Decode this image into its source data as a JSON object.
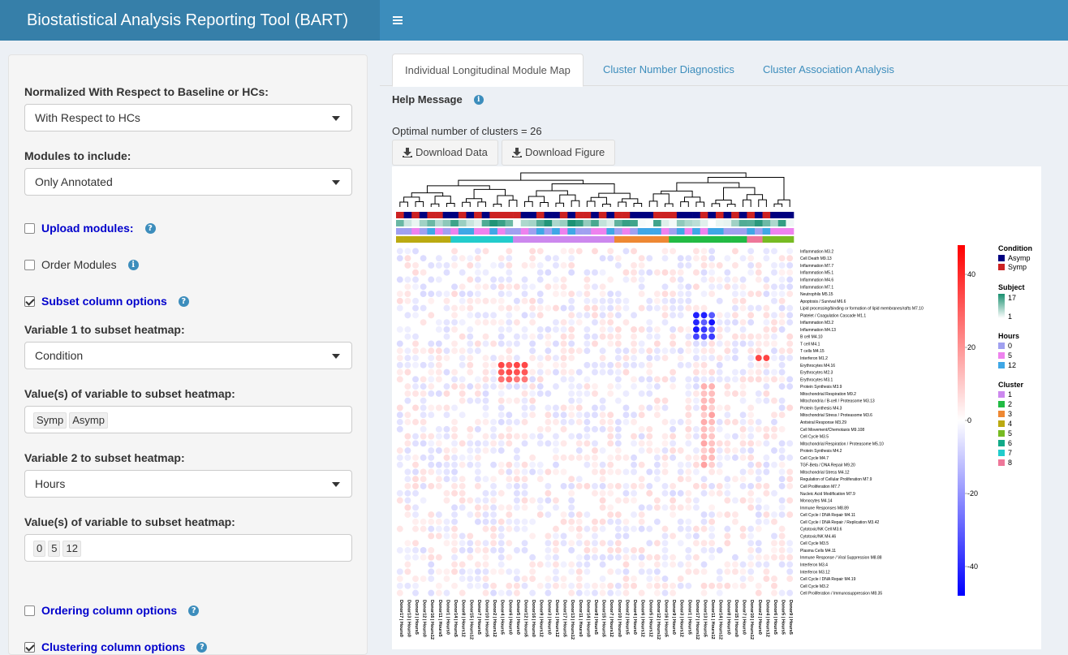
{
  "app": {
    "title": "Biostatistical Analysis Reporting Tool (BART)",
    "menu_icon": "hamburger-icon"
  },
  "sidebar": {
    "normalized_label": "Normalized With Respect to Baseline or HCs:",
    "normalized_value": "With Respect to HCs",
    "modules_label": "Modules to include:",
    "modules_value": "Only Annotated",
    "upload_modules_label": "Upload modules:",
    "upload_modules_checked": false,
    "order_modules_label": "Order Modules",
    "order_modules_checked": false,
    "subset_column_label": "Subset column options",
    "subset_column_checked": true,
    "var1_label": "Variable 1 to subset heatmap:",
    "var1_value": "Condition",
    "values1_label": "Value(s) of variable to subset heatmap:",
    "values1": [
      "Symp",
      "Asymp"
    ],
    "var2_label": "Variable 2 to subset heatmap:",
    "var2_value": "Hours",
    "values2_label": "Value(s) of variable to subset heatmap:",
    "values2": [
      "0",
      "5",
      "12"
    ],
    "ordering_column_label": "Ordering column options",
    "ordering_column_checked": false,
    "clustering_column_label": "Clustering column options",
    "clustering_column_checked": true
  },
  "main": {
    "tabs": [
      {
        "label": "Individual Longitudinal Module Map",
        "active": true
      },
      {
        "label": "Cluster Number Diagnostics",
        "active": false
      },
      {
        "label": "Cluster Association Analysis",
        "active": false
      }
    ],
    "help_message_label": "Help Message",
    "optimal_clusters_text": "Optimal number of clusters = 26",
    "download_data_label": "Download Data",
    "download_figure_label": "Download Figure"
  },
  "chart_data": {
    "type": "heatmap",
    "rows": [
      "Inflammation M3.2",
      "Cell Death M9.13",
      "Inflammation M7.7",
      "Inflammation M5.1",
      "Inflammation M4.6",
      "Inflammation M7.1",
      "Neutrophils M5.15",
      "Apoptosis / Survival M6.6",
      "Lipid processing/binding or formation of lipid membranes/rafts M7.10",
      "Platelet / Coagulation Cascade M1.1",
      "Inflammation M3.2",
      "Inflammation M4.13",
      "B cell M4.10",
      "T cell M4.1",
      "T cells M4.15",
      "Interferon M1.2",
      "Erythrocytes M4.16",
      "Erythrocytes M2.3",
      "Erythrocytes M3.1",
      "Protein Synthesis M3.9",
      "Mitochondrial Respiration M9.2",
      "Mitochondria / B-cell / Proteasome M3.13",
      "Protein Synthesis M4.3",
      "Mitochondrial Stress / Proteasome M3.6",
      "Antiviral Response M3.29",
      "Cell Movement/Chemotaxis M9.108",
      "Cell Cycle M3.5",
      "Mitochondrial Respiration / Proteasome M5.10",
      "Protein Synthesis M4.2",
      "Cell Cycle M4.7",
      "TGF-Beta / DNA Repair M9.20",
      "Mitochondrial Stress M4.12",
      "Regulation of Cellular Proliferation M7.9",
      "Cell Proliferation M7.7",
      "Nucleic Acid Modification M7.9",
      "Monocytes M4.14",
      "Immune Responses M8.89",
      "Cell Cycle / DNA Repair M4.11",
      "Cell Cycle / DNA Repair / Replication M3.42",
      "Cytotoxic/NK Cell M3.6",
      "Cytotoxic/NK M4.46",
      "Cell Cycle M3.5",
      "Plasma Cells M4.11",
      "Immune Response / Viral Suppression M8.88",
      "Interferon M3.4",
      "Interferon M3.12",
      "Cell Cycle / DNA Repair M4.19",
      "Cell Cycle M3.2",
      "Cell Proliferation / Immunosuppression M8.35"
    ],
    "columns": [
      "Donor17 | Hours0",
      "Donor13 | Hours0",
      "Donor3 | Hours5",
      "Donor12 | Hours0",
      "Donor16 | Hours12",
      "Donor11 | Hours5",
      "Donor1 | Hours0",
      "Donor14 | Hours5",
      "Donor8 | Hours12",
      "Donor15 | Hours12",
      "Donor7 | Hours5",
      "Donor10 | Hours5",
      "Donor2 | Hours12",
      "Donor4 | Hours5",
      "Donor6 | Hours0",
      "Donor5 | Hours0",
      "Donor12 | Hours5",
      "Donor16 | Hours0",
      "Donor9 | Hours12",
      "Donor3 | Hours0",
      "Donor1 | Hours12",
      "Donor17 | Hours5",
      "Donor13 | Hours12",
      "Donor11 | Hours0",
      "Donor14 | Hours0",
      "Donor8 | Hours5",
      "Donor15 | Hours5",
      "Donor7 | Hours12",
      "Donor10 | Hours0",
      "Donor2 | Hours5",
      "Donor4 | Hours0",
      "Donor6 | Hours12",
      "Donor5 | Hours12",
      "Donor12 | Hours12",
      "Donor16 | Hours5",
      "Donor9 | Hours0",
      "Donor3 | Hours12",
      "Donor1 | Hours5",
      "Donor17 | Hours12",
      "Donor13 | Hours5",
      "Donor11 | Hours12",
      "Donor14 | Hours12",
      "Donor8 | Hours0",
      "Donor15 | Hours0",
      "Donor7 | Hours0",
      "Donor10 | Hours12",
      "Donor2 | Hours0",
      "Donor4 | Hours12",
      "Donor6 | Hours5",
      "Donor5 | Hours5",
      "Donor9 | Hours5"
    ],
    "color_scale": {
      "min": -48,
      "max": 48,
      "ticks": [
        40,
        20,
        0,
        -20,
        -40
      ],
      "low_color": "#0000ff",
      "mid_color": "#ffffff",
      "high_color": "#ff0000"
    },
    "legends": {
      "condition": {
        "title": "Condition",
        "items": [
          {
            "label": "Asymp",
            "color": "#000080"
          },
          {
            "label": "Symp",
            "color": "#cc2222"
          }
        ]
      },
      "subject": {
        "title": "Subject",
        "max_label": "17",
        "min_label": "1",
        "colors": [
          "#1a9070",
          "#ffffff"
        ]
      },
      "hours": {
        "title": "Hours",
        "items": [
          {
            "label": "0",
            "color": "#a0a0f0"
          },
          {
            "label": "5",
            "color": "#ee82ee"
          },
          {
            "label": "12",
            "color": "#3fa7e6"
          }
        ]
      },
      "cluster": {
        "title": "Cluster",
        "items": [
          {
            "label": "1",
            "color": "#cc88ee"
          },
          {
            "label": "2",
            "color": "#22bb44"
          },
          {
            "label": "3",
            "color": "#ee8833"
          },
          {
            "label": "4",
            "color": "#bbaa11"
          },
          {
            "label": "5",
            "color": "#77bb22"
          },
          {
            "label": "6",
            "color": "#11aa88"
          },
          {
            "label": "7",
            "color": "#22cccc"
          },
          {
            "label": "8",
            "color": "#ee7799"
          }
        ]
      }
    }
  }
}
